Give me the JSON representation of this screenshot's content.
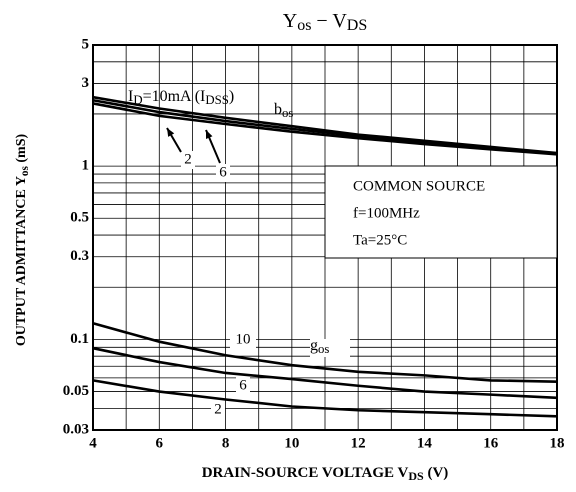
{
  "chart_data": {
    "type": "line",
    "title_parts": [
      "Y",
      "os",
      " − V",
      "DS"
    ],
    "x_label_parts": [
      "DRAIN-SOURCE   VOLTAGE   V",
      "DS",
      " (V)"
    ],
    "y_label_parts": [
      "OUTPUT  ADMITTANCE   Y",
      "os",
      "  (mS)"
    ],
    "x": [
      4,
      6,
      8,
      10,
      12,
      14,
      16,
      18
    ],
    "series": [
      {
        "color": "#000000",
        "values": [
          2.5,
          2.15,
          1.9,
          1.7,
          1.52,
          1.4,
          1.29,
          1.19
        ]
      },
      {
        "color": "#000000",
        "values": [
          2.4,
          2.05,
          1.82,
          1.64,
          1.49,
          1.37,
          1.27,
          1.18
        ]
      },
      {
        "color": "#000000",
        "values": [
          2.3,
          1.95,
          1.75,
          1.58,
          1.45,
          1.34,
          1.25,
          1.17
        ]
      },
      {
        "color": "#000000",
        "values": [
          0.124,
          0.097,
          0.081,
          0.071,
          0.065,
          0.062,
          0.058,
          0.057
        ]
      },
      {
        "color": "#000000",
        "values": [
          0.089,
          0.074,
          0.064,
          0.059,
          0.054,
          0.05,
          0.048,
          0.046
        ]
      },
      {
        "color": "#000000",
        "values": [
          0.058,
          0.05,
          0.045,
          0.041,
          0.039,
          0.038,
          0.037,
          0.036
        ]
      }
    ],
    "xlim": [
      4,
      18
    ],
    "xticks": [
      4,
      6,
      8,
      10,
      12,
      14,
      16,
      18
    ],
    "x_minor_gridlines": [
      5,
      7,
      9,
      11,
      13,
      15,
      17
    ],
    "ylim": [
      0.03,
      5
    ],
    "y_log_scale": true,
    "yticks": [
      0.03,
      0.05,
      0.1,
      0.3,
      0.5,
      1,
      3,
      5
    ],
    "y_minor_gridlines": [
      0.04,
      0.06,
      0.07,
      0.08,
      0.09,
      0.2,
      0.4,
      0.6,
      0.7,
      0.8,
      0.9,
      2,
      4
    ],
    "grid": true,
    "id_label_parts": [
      "I",
      "D",
      "=10mA (I",
      "DSS",
      ")"
    ],
    "bos_label_parts": [
      "b",
      "os"
    ],
    "gos_label_parts": [
      "g",
      "os"
    ],
    "curve_labels": [
      "2",
      "6",
      "10",
      "6",
      "2"
    ],
    "conditions": [
      "COMMON SOURCE",
      "f=100MHz",
      "Ta=25°C"
    ]
  }
}
